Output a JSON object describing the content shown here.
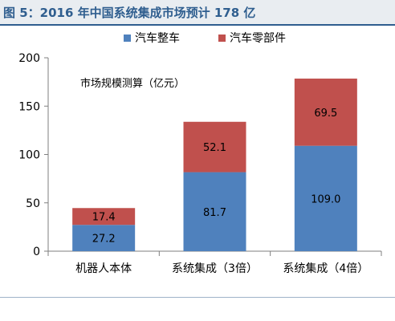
{
  "header": {
    "title": "图 5：2016 年中国系统集成市场预计 178 亿"
  },
  "colors": {
    "title": "#2f5e8f",
    "title_bg": "#e9edf1",
    "auto_body": "#4f81bd",
    "auto_parts": "#c0504d"
  },
  "chart_data": {
    "type": "bar",
    "stacked": true,
    "annotation": "市场规模测算（亿元）",
    "categories": [
      "机器人本体",
      "系统集成（3倍）",
      "系统集成（4倍）"
    ],
    "series": [
      {
        "name": "汽车整车",
        "values": [
          27.2,
          81.7,
          109.0
        ],
        "labels": [
          "27.2",
          "81.7",
          "109.0"
        ],
        "color": "#4f81bd"
      },
      {
        "name": "汽车零部件",
        "values": [
          17.4,
          52.1,
          69.5
        ],
        "labels": [
          "17.4",
          "52.1",
          "69.5"
        ],
        "color": "#c0504d"
      }
    ],
    "ylim": [
      0,
      200
    ],
    "yticks": [
      0,
      50,
      100,
      150,
      200
    ],
    "ytick_labels": [
      "0",
      "50",
      "100",
      "150",
      "200"
    ],
    "legend_position": "top-center",
    "grid": false
  }
}
